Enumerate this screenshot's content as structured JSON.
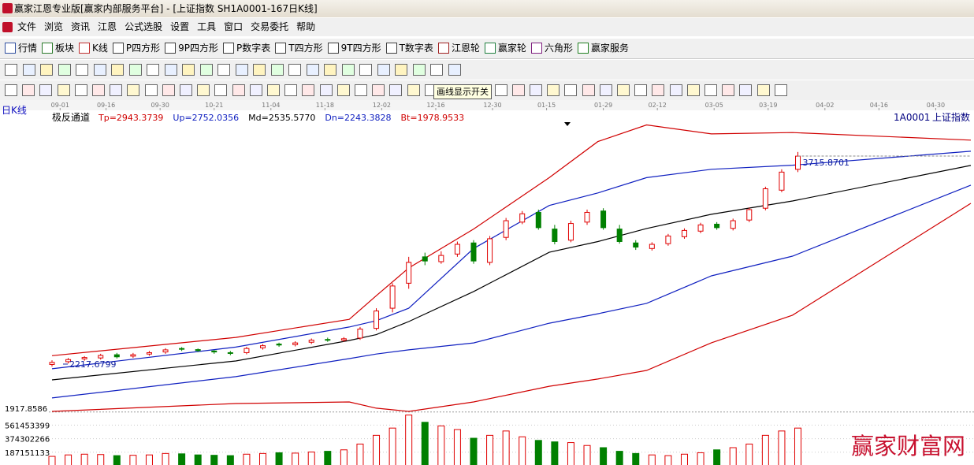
{
  "window": {
    "title": "赢家江恩专业版[赢家内部服务平台] - [上证指数  SH1A0001-167日K线]"
  },
  "menu": [
    "文件",
    "浏览",
    "资讯",
    "江恩",
    "公式选股",
    "设置",
    "工具",
    "窗口",
    "交易委托",
    "帮助"
  ],
  "toolbar": [
    "行情",
    "板块",
    "K线",
    "P四方形",
    "9P四方形",
    "P数字表",
    "T四方形",
    "9T四方形",
    "T数字表",
    "江恩轮",
    "赢家轮",
    "六角形",
    "赢家服务"
  ],
  "tooltip": "画线显示开关",
  "period_label": "日K线",
  "indicator": {
    "name": "极反通道",
    "values": [
      "Tp=2943.3739",
      "Up=2752.0356",
      "Md=2535.5770",
      "Dn=2243.3828",
      "Bt=1978.9533"
    ]
  },
  "symbol": {
    "code": "1A0001",
    "name": "上证指数"
  },
  "watermark": "赢家财富网",
  "chart_data": [
    {
      "type": "candlestick",
      "xlim": [
        0,
        170
      ],
      "xticks": [
        {
          "value": 1.5,
          "label": "09-01"
        },
        {
          "value": 10,
          "label": "09-16"
        },
        {
          "value": 20,
          "label": "09-30"
        },
        {
          "value": 30,
          "label": "10-21"
        },
        {
          "value": 40.5,
          "label": "11-04"
        },
        {
          "value": 50.5,
          "label": "11-18"
        },
        {
          "value": 61,
          "label": "12-02"
        },
        {
          "value": 71,
          "label": "12-16"
        },
        {
          "value": 81.5,
          "label": "12-30"
        },
        {
          "value": 91.5,
          "label": "01-15"
        },
        {
          "value": 102,
          "label": "01-29"
        },
        {
          "value": 112,
          "label": "02-12"
        },
        {
          "value": 122.5,
          "label": "03-05"
        },
        {
          "value": 132.5,
          "label": "03-19"
        },
        {
          "value": 143,
          "label": "04-02"
        },
        {
          "value": 153,
          "label": "04-16"
        },
        {
          "value": 163.5,
          "label": "04-30"
        }
      ],
      "ylim": [
        1877,
        3988
      ],
      "yticks": [
        1917.8586
      ],
      "annotations": [
        3715.8701,
        2217.6799
      ],
      "up_color": "#e00000",
      "down_color": "#008000",
      "x": [
        0,
        3,
        6,
        9,
        12,
        15,
        18,
        21,
        24,
        27,
        30,
        33,
        36,
        39,
        42,
        45,
        48,
        51,
        54,
        57,
        60,
        63,
        66,
        69,
        72,
        75,
        78,
        81,
        84,
        87,
        90,
        93,
        96,
        99,
        102,
        105,
        108,
        111,
        114,
        117,
        120,
        123,
        126,
        129,
        132,
        135,
        138
      ],
      "open": [
        2215,
        2235,
        2255,
        2262,
        2285,
        2275,
        2290,
        2305,
        2330,
        2322,
        2312,
        2300,
        2300,
        2335,
        2362,
        2358,
        2375,
        2395,
        2390,
        2405,
        2475,
        2620,
        2800,
        2990,
        2955,
        3010,
        3090,
        2950,
        3130,
        3240,
        3310,
        3190,
        3110,
        3240,
        3320,
        3190,
        3090,
        3050,
        3085,
        3135,
        3175,
        3225,
        3195,
        3255,
        3340,
        3470,
        3620
      ],
      "high": [
        2245,
        2262,
        2275,
        2292,
        2298,
        2298,
        2312,
        2332,
        2340,
        2330,
        2318,
        2312,
        2342,
        2362,
        2372,
        2382,
        2402,
        2408,
        2412,
        2485,
        2620,
        2800,
        2990,
        3020,
        3030,
        3100,
        3110,
        3140,
        3270,
        3320,
        3330,
        3220,
        3250,
        3330,
        3340,
        3220,
        3110,
        3095,
        3155,
        3195,
        3235,
        3240,
        3265,
        3345,
        3495,
        3620,
        3745
      ],
      "low": [
        2200,
        2222,
        2242,
        2250,
        2258,
        2262,
        2278,
        2292,
        2312,
        2305,
        2292,
        2282,
        2288,
        2322,
        2342,
        2345,
        2362,
        2378,
        2378,
        2392,
        2460,
        2590,
        2760,
        2930,
        2940,
        2990,
        2940,
        2930,
        3110,
        3225,
        3185,
        3080,
        3095,
        3220,
        3185,
        3085,
        3040,
        3035,
        3070,
        3120,
        3160,
        3185,
        3180,
        3240,
        3325,
        3455,
        3600
      ],
      "close": [
        2230,
        2250,
        2265,
        2280,
        2270,
        2285,
        2300,
        2320,
        2325,
        2315,
        2305,
        2295,
        2330,
        2350,
        2355,
        2370,
        2390,
        2390,
        2400,
        2470,
        2600,
        2780,
        2950,
        2960,
        3000,
        3080,
        2960,
        3120,
        3250,
        3300,
        3200,
        3100,
        3230,
        3310,
        3200,
        3100,
        3060,
        3080,
        3140,
        3180,
        3220,
        3200,
        3250,
        3330,
        3480,
        3600,
        3715
      ],
      "series": [
        {
          "name": "Tp",
          "color": "#d00000",
          "x": [
            0,
            34,
            55,
            60,
            66,
            78,
            92,
            101,
            110,
            122,
            137,
            170
          ],
          "values": [
            2278,
            2410,
            2540,
            2710,
            2910,
            3190,
            3560,
            3820,
            3940,
            3875,
            3885,
            3830
          ]
        },
        {
          "name": "Up",
          "color": "#1020c0",
          "x": [
            0,
            34,
            55,
            60,
            66,
            78,
            92,
            101,
            110,
            122,
            137,
            170
          ],
          "values": [
            2184,
            2340,
            2485,
            2530,
            2620,
            3050,
            3360,
            3450,
            3560,
            3620,
            3650,
            3750
          ]
        },
        {
          "name": "Md",
          "color": "#000000",
          "x": [
            0,
            34,
            55,
            60,
            66,
            78,
            92,
            101,
            110,
            122,
            137,
            170
          ],
          "values": [
            2104,
            2240,
            2388,
            2430,
            2524,
            2740,
            3023,
            3100,
            3194,
            3296,
            3392,
            3648
          ]
        },
        {
          "name": "Dn",
          "color": "#1020c0",
          "x": [
            0,
            34,
            55,
            60,
            66,
            78,
            92,
            101,
            110,
            122,
            137,
            170
          ],
          "values": [
            1974,
            2127,
            2257,
            2290,
            2320,
            2370,
            2512,
            2580,
            2655,
            2853,
            2995,
            3506
          ]
        },
        {
          "name": "Bt",
          "color": "#d00000",
          "x": [
            0,
            34,
            55,
            60,
            66,
            78,
            92,
            101,
            110,
            122,
            137,
            170
          ],
          "values": [
            1877,
            1934,
            1945,
            1900,
            1877,
            1945,
            2058,
            2110,
            2172,
            2371,
            2570,
            3375
          ]
        }
      ]
    },
    {
      "type": "bar",
      "xlim": [
        0,
        170
      ],
      "ylim": [
        0,
        750000000
      ],
      "yticks": [
        187151133,
        374302266,
        561453399
      ],
      "x": [
        0,
        3,
        6,
        9,
        12,
        15,
        18,
        21,
        24,
        27,
        30,
        33,
        36,
        39,
        42,
        45,
        48,
        51,
        54,
        57,
        60,
        63,
        66,
        69,
        72,
        75,
        78,
        81,
        84,
        87,
        90,
        93,
        96,
        99,
        102,
        105,
        108,
        111,
        114,
        117,
        120,
        123,
        126,
        129,
        132,
        135,
        138
      ],
      "values": [
        130000000,
        150000000,
        160000000,
        155000000,
        140000000,
        145000000,
        150000000,
        170000000,
        165000000,
        150000000,
        145000000,
        140000000,
        160000000,
        170000000,
        180000000,
        175000000,
        190000000,
        200000000,
        220000000,
        300000000,
        420000000,
        520000000,
        700000000,
        600000000,
        550000000,
        500000000,
        380000000,
        420000000,
        480000000,
        400000000,
        350000000,
        330000000,
        320000000,
        280000000,
        250000000,
        200000000,
        170000000,
        150000000,
        140000000,
        160000000,
        180000000,
        220000000,
        250000000,
        300000000,
        420000000,
        480000000,
        520000000
      ]
    }
  ]
}
